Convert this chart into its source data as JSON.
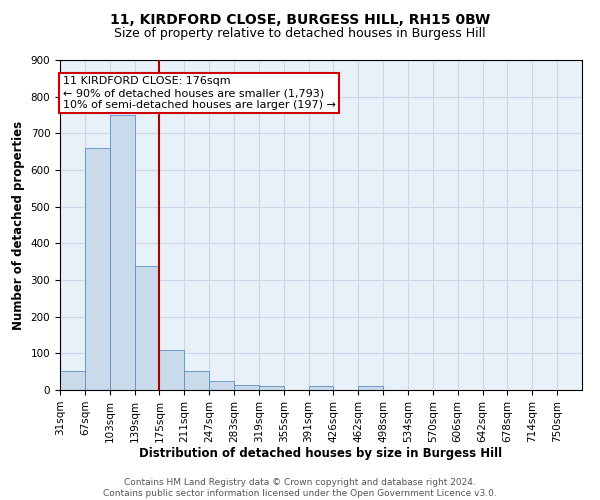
{
  "title_line1": "11, KIRDFORD CLOSE, BURGESS HILL, RH15 0BW",
  "title_line2": "Size of property relative to detached houses in Burgess Hill",
  "xlabel": "Distribution of detached houses by size in Burgess Hill",
  "ylabel": "Number of detached properties",
  "bar_labels": [
    "31sqm",
    "67sqm",
    "103sqm",
    "139sqm",
    "175sqm",
    "211sqm",
    "247sqm",
    "283sqm",
    "319sqm",
    "355sqm",
    "391sqm",
    "426sqm",
    "462sqm",
    "498sqm",
    "534sqm",
    "570sqm",
    "606sqm",
    "642sqm",
    "678sqm",
    "714sqm",
    "750sqm"
  ],
  "bar_values": [
    52,
    660,
    750,
    338,
    108,
    52,
    25,
    14,
    10,
    0,
    10,
    0,
    10,
    0,
    0,
    0,
    0,
    0,
    0,
    0,
    0
  ],
  "bar_color": "#c9daea",
  "bar_edge_color": "#5b8fc9",
  "vline_x_bin": 4,
  "annotation_text": "11 KIRDFORD CLOSE: 176sqm\n← 90% of detached houses are smaller (1,793)\n10% of semi-detached houses are larger (197) →",
  "annotation_box_facecolor": "white",
  "annotation_box_edgecolor": "#cc0000",
  "vline_color": "#aa0000",
  "grid_color": "#c8d8e8",
  "background_color": "#e8f0f8",
  "ylim": [
    0,
    900
  ],
  "yticks": [
    0,
    100,
    200,
    300,
    400,
    500,
    600,
    700,
    800,
    900
  ],
  "footer_text": "Contains HM Land Registry data © Crown copyright and database right 2024.\nContains public sector information licensed under the Open Government Licence v3.0.",
  "title_fontsize": 10,
  "subtitle_fontsize": 9,
  "axis_label_fontsize": 8.5,
  "tick_fontsize": 7.5,
  "annotation_fontsize": 8,
  "footer_fontsize": 6.5
}
